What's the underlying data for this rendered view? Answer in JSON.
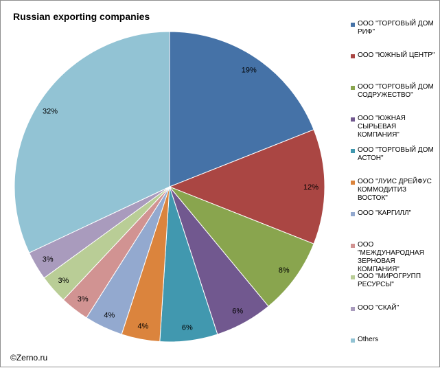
{
  "chart_data": {
    "type": "pie",
    "title": "Russian exporting companies",
    "start": "12 o'clock, clockwise",
    "legend_position": "right",
    "slices": [
      {
        "label": "ООО \"ТОРГОВЫЙ ДОМ РИФ\"",
        "value": 19,
        "display": "19%",
        "color": "#4572a7"
      },
      {
        "label": "ООО \"ЮЖНЫЙ ЦЕНТР\"",
        "value": 12,
        "display": "12%",
        "color": "#aa4643"
      },
      {
        "label": "ООО \"ТОРГОВЫЙ ДОМ СОДРУЖЕСТВО\"",
        "value": 8,
        "display": "8%",
        "color": "#89a54e"
      },
      {
        "label": "ООО \"ЮЖНАЯ СЫРЬЕВАЯ КОМПАНИЯ\"",
        "value": 6,
        "display": "6%",
        "color": "#71588f"
      },
      {
        "label": "ООО \"ТОРГОВЫЙ ДОМ АСТОН\"",
        "value": 6,
        "display": "6%",
        "color": "#4198af"
      },
      {
        "label": "ООО \"ЛУИС ДРЕЙФУС КОММОДИТИЗ ВОСТОК\"",
        "value": 4,
        "display": "4%",
        "color": "#db843d"
      },
      {
        "label": "ООО \"КАРГИЛЛ\"",
        "value": 4,
        "display": "4%",
        "color": "#93a9cf"
      },
      {
        "label": "ООО \"МЕЖДУНАРОДНАЯ ЗЕРНОВАЯ КОМПАНИЯ\"",
        "value": 3,
        "display": "3%",
        "color": "#d19392"
      },
      {
        "label": "ООО \"МИРОГРУПП РЕСУРСЫ\"",
        "value": 3,
        "display": "3%",
        "color": "#b9cd96"
      },
      {
        "label": "ООО \"СКАЙ\"",
        "value": 3,
        "display": "3%",
        "color": "#a99bbd"
      },
      {
        "label": "Others",
        "value": 32,
        "display": "32%",
        "color": "#92c3d4"
      }
    ]
  },
  "source": "©Zerno.ru"
}
